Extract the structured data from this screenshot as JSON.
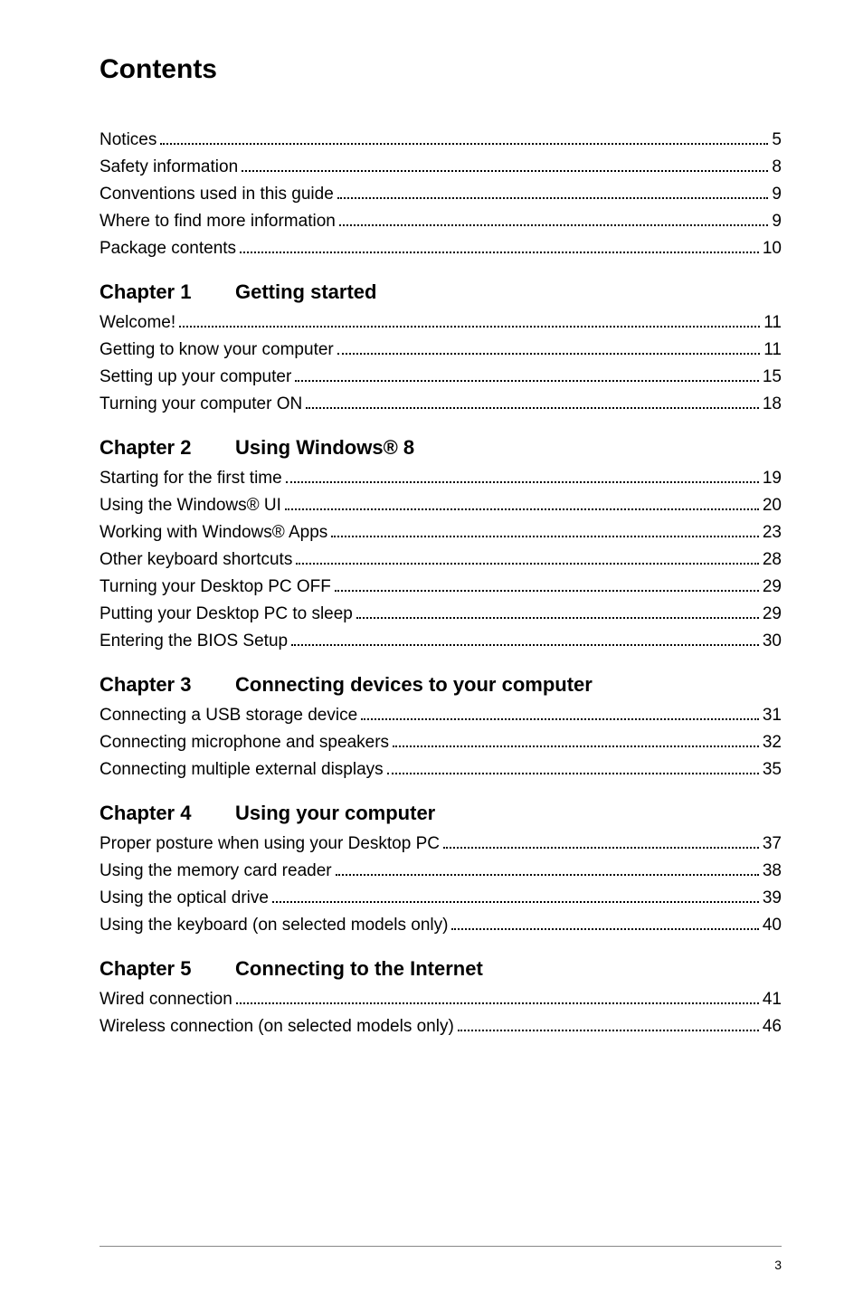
{
  "page": {
    "title": "Contents",
    "page_number": "3",
    "colors": {
      "background": "#ffffff",
      "text": "#000000",
      "divider": "#888888",
      "dots": "#000000"
    },
    "fonts": {
      "title_size_pt": 22,
      "heading_size_pt": 16,
      "entry_size_pt": 14,
      "pagenum_size_pt": 10
    }
  },
  "sections": [
    {
      "chapter_num": "",
      "chapter_title": "",
      "entries": [
        {
          "label": "Notices",
          "page": "5"
        },
        {
          "label": "Safety information",
          "page": "8"
        },
        {
          "label": "Conventions used in this guide",
          "page": "9"
        },
        {
          "label": "Where to find more information",
          "page": "9"
        },
        {
          "label": "Package contents",
          "page": "10"
        }
      ]
    },
    {
      "chapter_num": "Chapter 1",
      "chapter_title": "Getting started",
      "entries": [
        {
          "label": "Welcome!",
          "page": "11"
        },
        {
          "label": "Getting to know your computer",
          "page": "11"
        },
        {
          "label": "Setting up your computer",
          "page": "15"
        },
        {
          "label": "Turning your computer ON",
          "page": "18"
        }
      ]
    },
    {
      "chapter_num": "Chapter 2",
      "chapter_title": "Using Windows® 8",
      "entries": [
        {
          "label": "Starting for the first time",
          "page": "19"
        },
        {
          "label": "Using the Windows® UI",
          "page": "20"
        },
        {
          "label": "Working with Windows® Apps",
          "page": "23"
        },
        {
          "label": "Other keyboard shortcuts",
          "page": "28"
        },
        {
          "label": "Turning your Desktop PC OFF",
          "page": "29"
        },
        {
          "label": "Putting your Desktop PC to sleep",
          "page": "29"
        },
        {
          "label": "Entering the BIOS Setup",
          "page": "30"
        }
      ]
    },
    {
      "chapter_num": "Chapter 3",
      "chapter_title": "Connecting devices to your computer",
      "entries": [
        {
          "label": "Connecting a USB storage device",
          "page": "31"
        },
        {
          "label": "Connecting microphone and speakers",
          "page": "32"
        },
        {
          "label": "Connecting multiple external displays",
          "page": "35"
        }
      ]
    },
    {
      "chapter_num": "Chapter 4",
      "chapter_title": "Using your computer",
      "entries": [
        {
          "label": "Proper posture when using your Desktop PC",
          "page": "37"
        },
        {
          "label": "Using the memory card reader",
          "page": "38"
        },
        {
          "label": "Using the optical drive",
          "page": "39"
        },
        {
          "label": "Using the keyboard (on selected models only)",
          "page": "40"
        }
      ]
    },
    {
      "chapter_num": "Chapter 5",
      "chapter_title": "Connecting to the Internet",
      "entries": [
        {
          "label": "Wired connection",
          "page": "41"
        },
        {
          "label": "Wireless connection (on selected models only)",
          "page": "46"
        }
      ]
    }
  ]
}
